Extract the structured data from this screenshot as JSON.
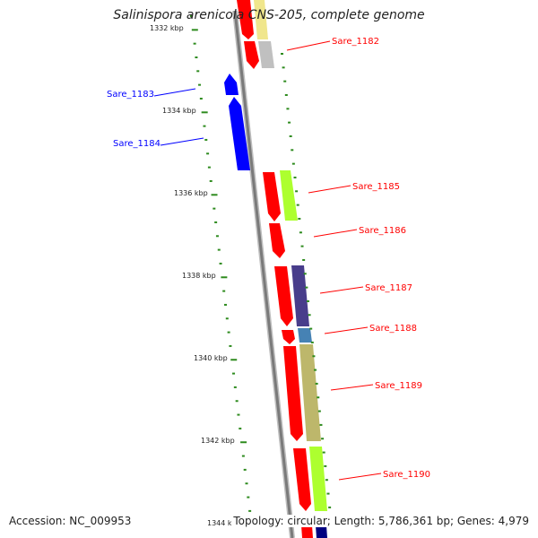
{
  "title": "Salinispora arenicola CNS-205, complete genome",
  "footer": {
    "accession": "Accession: NC_009953",
    "summary": "Topology: circular; Length: 5,786,361 bp; Genes: 4,979"
  },
  "tick_labels": [
    "1332 kbp",
    "1334 kbp",
    "1336 kbp",
    "1338 kbp",
    "1340 kbp",
    "1342 kbp",
    "1344 k"
  ],
  "genes": [
    {
      "label": "Sare_1182",
      "strand": "forward",
      "color": "#ff0000"
    },
    {
      "label": "Sare_1183",
      "strand": "reverse",
      "color": "#0000ff"
    },
    {
      "label": "Sare_1184",
      "strand": "reverse",
      "color": "#0000ff"
    },
    {
      "label": "Sare_1185",
      "strand": "forward",
      "color": "#ff0000"
    },
    {
      "label": "Sare_1186",
      "strand": "forward",
      "color": "#ff0000"
    },
    {
      "label": "Sare_1187",
      "strand": "forward",
      "color": "#ff0000"
    },
    {
      "label": "Sare_1188",
      "strand": "forward",
      "color": "#ff0000"
    },
    {
      "label": "Sare_1189",
      "strand": "forward",
      "color": "#ff0000"
    },
    {
      "label": "Sare_1190",
      "strand": "forward",
      "color": "#ff0000"
    }
  ],
  "colors": {
    "forward_gene": "#ff0000",
    "reverse_gene": "#0000ff",
    "backbone": "#8a8a8a",
    "tick_marks": "#2e8b1e",
    "cog_yellow": "#f0e68c",
    "cog_grey": "#c0c0c0",
    "cog_lime": "#adff2f",
    "cog_purple": "#483d8b",
    "cog_steelblue": "#4682b4",
    "cog_khaki": "#bdb76b",
    "cog_navy": "#000080"
  }
}
